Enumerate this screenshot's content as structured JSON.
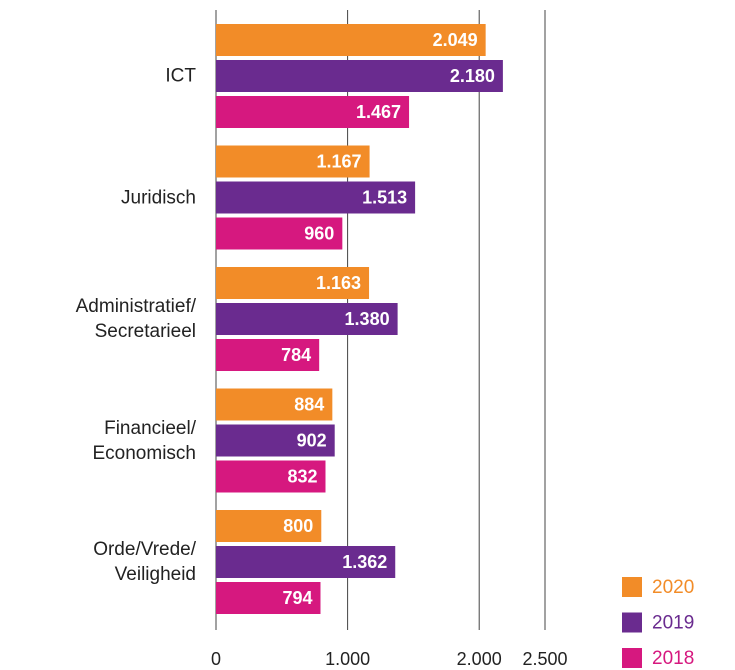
{
  "chart_data": {
    "type": "hbar",
    "categories": [
      "ICT",
      "Juridisch",
      "Administratief/\nSecretarieel",
      "Financieel/\nEconomisch",
      "Orde/Vrede/\nVeiligheid"
    ],
    "series": [
      {
        "name": "2020",
        "color": "#f28c28",
        "values": [
          2049,
          1167,
          1163,
          884,
          800
        ],
        "value_labels": [
          "2.049",
          "1.167",
          "1.163",
          "884",
          "800"
        ]
      },
      {
        "name": "2019",
        "color": "#6a2b8f",
        "values": [
          2180,
          1513,
          1380,
          902,
          1362
        ],
        "value_labels": [
          "2.180",
          "1.513",
          "1.380",
          "902",
          "1.362"
        ]
      },
      {
        "name": "2018",
        "color": "#d6187f",
        "values": [
          1467,
          960,
          784,
          832,
          794
        ],
        "value_labels": [
          "1.467",
          "960",
          "784",
          "832",
          "794"
        ]
      }
    ],
    "xlim": [
      0,
      2500
    ],
    "xticks": [
      0,
      {
        "value": 1000,
        "label": "1.000"
      },
      {
        "value": 2000,
        "label": "2.000"
      },
      {
        "value": 2500,
        "label": "2.500"
      }
    ],
    "grid": true,
    "legend": "bottom-right"
  }
}
